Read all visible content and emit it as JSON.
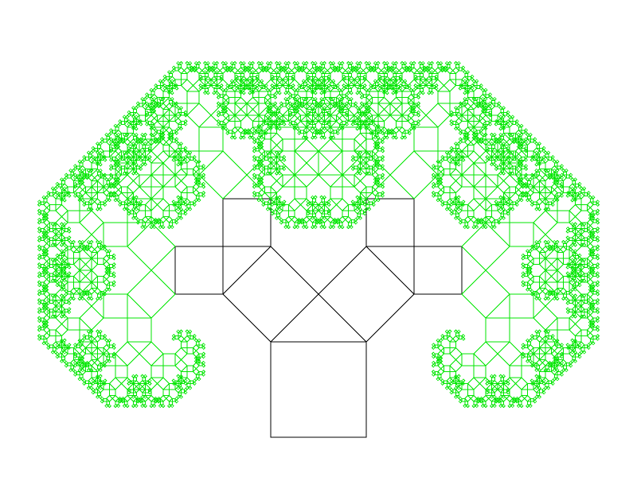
{
  "figure": {
    "type": "pythagoras-tree",
    "depth": 12,
    "angle_degrees": 45,
    "colors": {
      "background": "#ffffff",
      "early_levels": "#000000",
      "late_levels": "#00e600"
    },
    "black_level_count": 3
  }
}
